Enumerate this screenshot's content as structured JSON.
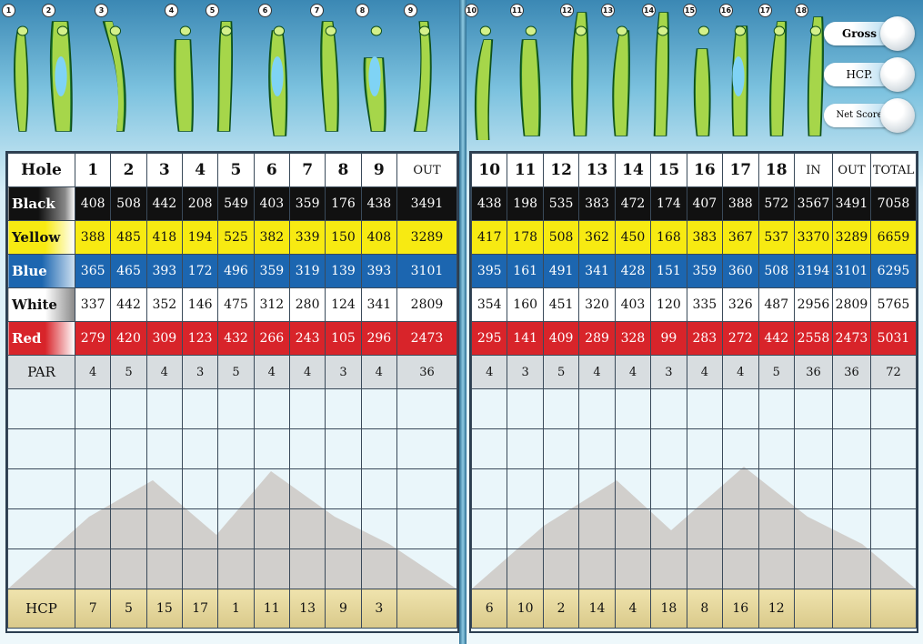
{
  "legend": {
    "gross": "Gross",
    "hcp": "HCP.",
    "net": "Net Score"
  },
  "hole_maps": [
    "1",
    "2",
    "3",
    "4",
    "5",
    "6",
    "7",
    "8",
    "9",
    "10",
    "11",
    "12",
    "13",
    "14",
    "15",
    "16",
    "17",
    "18"
  ],
  "front": {
    "header": [
      "Hole",
      "1",
      "2",
      "3",
      "4",
      "5",
      "6",
      "7",
      "8",
      "9",
      "OUT"
    ],
    "tees": [
      {
        "name": "Black",
        "values": [
          "408",
          "508",
          "442",
          "208",
          "549",
          "403",
          "359",
          "176",
          "438",
          "3491"
        ]
      },
      {
        "name": "Yellow",
        "values": [
          "388",
          "485",
          "418",
          "194",
          "525",
          "382",
          "339",
          "150",
          "408",
          "3289"
        ]
      },
      {
        "name": "Blue",
        "values": [
          "365",
          "465",
          "393",
          "172",
          "496",
          "359",
          "319",
          "139",
          "393",
          "3101"
        ]
      },
      {
        "name": "White",
        "values": [
          "337",
          "442",
          "352",
          "146",
          "475",
          "312",
          "280",
          "124",
          "341",
          "2809"
        ]
      },
      {
        "name": "Red",
        "values": [
          "279",
          "420",
          "309",
          "123",
          "432",
          "266",
          "243",
          "105",
          "296",
          "2473"
        ]
      }
    ],
    "par": {
      "label": "PAR",
      "values": [
        "4",
        "5",
        "4",
        "3",
        "5",
        "4",
        "4",
        "3",
        "4",
        "36"
      ]
    },
    "hcp": {
      "label": "HCP",
      "values": [
        "7",
        "5",
        "15",
        "17",
        "1",
        "11",
        "13",
        "9",
        "3",
        ""
      ]
    }
  },
  "back": {
    "header": [
      "10",
      "11",
      "12",
      "13",
      "14",
      "15",
      "16",
      "17",
      "18",
      "IN",
      "OUT",
      "TOTAL"
    ],
    "tees": [
      {
        "name": "Black",
        "values": [
          "438",
          "198",
          "535",
          "383",
          "472",
          "174",
          "407",
          "388",
          "572",
          "3567",
          "3491",
          "7058"
        ]
      },
      {
        "name": "Yellow",
        "values": [
          "417",
          "178",
          "508",
          "362",
          "450",
          "168",
          "383",
          "367",
          "537",
          "3370",
          "3289",
          "6659"
        ]
      },
      {
        "name": "Blue",
        "values": [
          "395",
          "161",
          "491",
          "341",
          "428",
          "151",
          "359",
          "360",
          "508",
          "3194",
          "3101",
          "6295"
        ]
      },
      {
        "name": "White",
        "values": [
          "354",
          "160",
          "451",
          "320",
          "403",
          "120",
          "335",
          "326",
          "487",
          "2956",
          "2809",
          "5765"
        ]
      },
      {
        "name": "Red",
        "values": [
          "295",
          "141",
          "409",
          "289",
          "328",
          "99",
          "283",
          "272",
          "442",
          "2558",
          "2473",
          "5031"
        ]
      }
    ],
    "par": {
      "values": [
        "4",
        "3",
        "5",
        "4",
        "4",
        "3",
        "4",
        "4",
        "5",
        "36",
        "36",
        "72"
      ]
    },
    "hcp": {
      "values": [
        "6",
        "10",
        "2",
        "14",
        "4",
        "18",
        "8",
        "16",
        "12",
        "",
        "",
        ""
      ]
    }
  }
}
